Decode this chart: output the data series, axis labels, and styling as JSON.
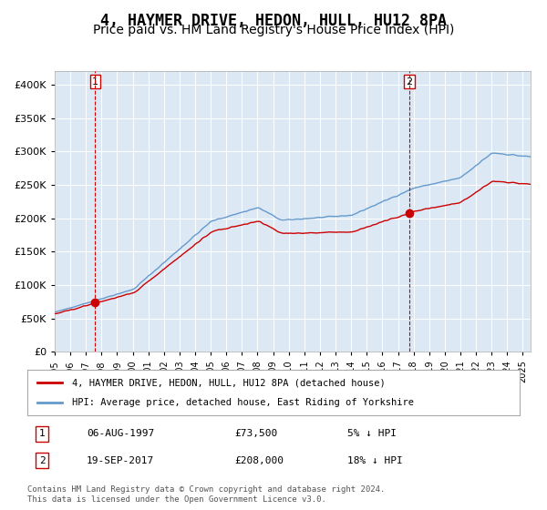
{
  "title": "4, HAYMER DRIVE, HEDON, HULL, HU12 8PA",
  "subtitle": "Price paid vs. HM Land Registry's House Price Index (HPI)",
  "title_fontsize": 12,
  "subtitle_fontsize": 10,
  "background_color": "#dce9f5",
  "plot_bg_color": "#dce9f5",
  "red_line_color": "#cc0000",
  "blue_line_color": "#6699cc",
  "ylim": [
    0,
    420000
  ],
  "yticks": [
    0,
    50000,
    100000,
    150000,
    200000,
    250000,
    300000,
    350000,
    400000
  ],
  "ytick_labels": [
    "£0",
    "£50K",
    "£100K",
    "£150K",
    "£200K",
    "£250K",
    "£300K",
    "£350K",
    "£400K"
  ],
  "xmin_year": 1995.0,
  "xmax_year": 2025.5,
  "purchase1_year": 1997.6,
  "purchase1_value": 73500,
  "purchase1_label": "1",
  "purchase1_date": "06-AUG-1997",
  "purchase1_price": "£73,500",
  "purchase1_hpi": "5% ↓ HPI",
  "purchase2_year": 2017.72,
  "purchase2_value": 208000,
  "purchase2_label": "2",
  "purchase2_date": "19-SEP-2017",
  "purchase2_price": "£208,000",
  "purchase2_hpi": "18% ↓ HPI",
  "legend_line1": "4, HAYMER DRIVE, HEDON, HULL, HU12 8PA (detached house)",
  "legend_line2": "HPI: Average price, detached house, East Riding of Yorkshire",
  "footer": "Contains HM Land Registry data © Crown copyright and database right 2024.\nThis data is licensed under the Open Government Licence v3.0.",
  "xtick_years": [
    1995,
    1996,
    1997,
    1998,
    1999,
    2000,
    2001,
    2002,
    2003,
    2004,
    2005,
    2006,
    2007,
    2008,
    2009,
    2010,
    2011,
    2012,
    2013,
    2014,
    2015,
    2016,
    2017,
    2018,
    2019,
    2020,
    2021,
    2022,
    2023,
    2024,
    2025
  ]
}
